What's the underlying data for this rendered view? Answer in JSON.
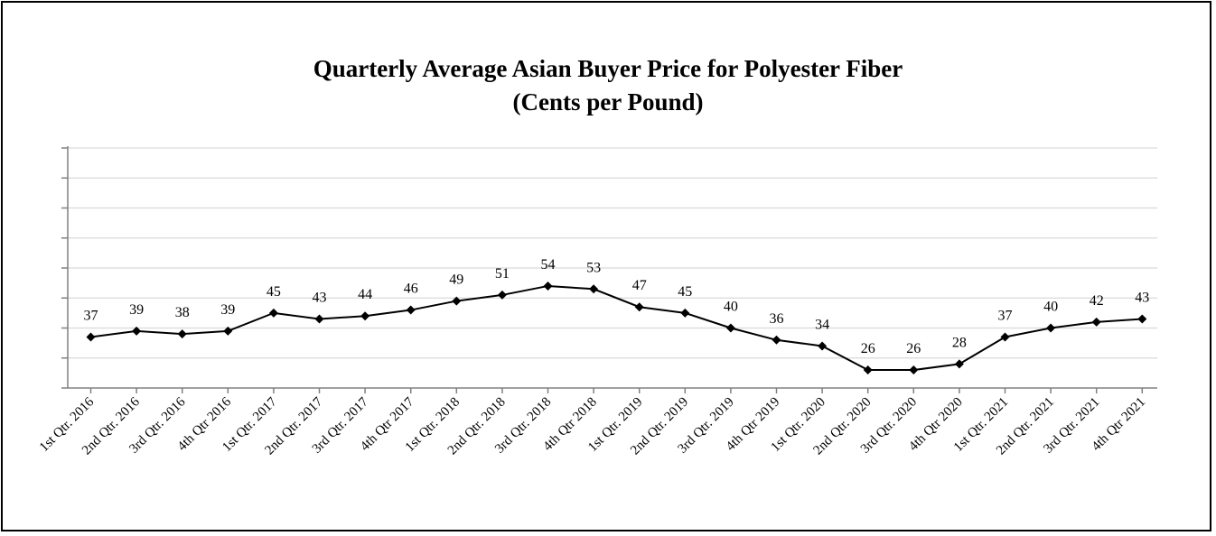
{
  "chart_data": {
    "type": "line",
    "title": "Quarterly Average Asian Buyer Price for Polyester Fiber",
    "subtitle": "(Cents per Pound)",
    "categories": [
      "1st Qtr. 2016",
      "2nd Qtr. 2016",
      "3rd Qtr. 2016",
      "4th Qtr 2016",
      "1st Qtr. 2017",
      "2nd Qtr. 2017",
      "3rd Qtr. 2017",
      "4th Qtr 2017",
      "1st Qtr. 2018",
      "2nd Qtr. 2018",
      "3rd Qtr. 2018",
      "4th Qtr 2018",
      "1st Qtr. 2019",
      "2nd Qtr. 2019",
      "3rd Qtr. 2019",
      "4th Qtr 2019",
      "1st Qtr. 2020",
      "2nd Qtr. 2020",
      "3rd Qtr. 2020",
      "4th Qtr 2020",
      "1st Qtr. 2021",
      "2nd Qtr. 2021",
      "3rd Qtr. 2021",
      "4th Qtr 2021"
    ],
    "series": [
      {
        "values": [
          37,
          39,
          38,
          39,
          45,
          43,
          44,
          46,
          49,
          51,
          54,
          53,
          47,
          45,
          40,
          36,
          34,
          26,
          26,
          28,
          37,
          40,
          42,
          43
        ]
      }
    ],
    "ylim": [
      20,
      100
    ],
    "y_tick_step": 10,
    "y_tick_labels_visible": false,
    "grid": true,
    "legend": "none",
    "colors": {
      "line": "#000000",
      "marker": "#000000",
      "grid": "#d9d9d9",
      "axis": "#808080"
    }
  }
}
